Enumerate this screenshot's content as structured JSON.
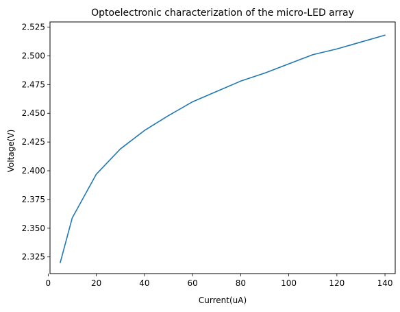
{
  "chart_data": {
    "type": "line",
    "title": "Optoelectronic characterization of the micro-LED array",
    "xlabel": "Current(uA)",
    "ylabel": "Voltage(V)",
    "xlim": [
      0.75,
      144.25
    ],
    "ylim": [
      2.3105,
      2.5295
    ],
    "xticks": [
      0,
      20,
      40,
      60,
      80,
      100,
      120,
      140
    ],
    "yticks": [
      2.325,
      2.35,
      2.375,
      2.4,
      2.425,
      2.45,
      2.475,
      2.5,
      2.525
    ],
    "xtick_labels": [
      "0",
      "20",
      "40",
      "60",
      "80",
      "100",
      "120",
      "140"
    ],
    "ytick_labels": [
      "2.325",
      "2.350",
      "2.375",
      "2.400",
      "2.425",
      "2.450",
      "2.475",
      "2.500",
      "2.525"
    ],
    "grid": false,
    "series": [
      {
        "color": "#1f77b4",
        "x": [
          5,
          10,
          20,
          30,
          40,
          50,
          60,
          70,
          80,
          90,
          100,
          110,
          120,
          130,
          140
        ],
        "y": [
          2.32,
          2.359,
          2.397,
          2.419,
          2.435,
          2.448,
          2.46,
          2.469,
          2.478,
          2.485,
          2.493,
          2.501,
          2.506,
          2.512,
          2.518
        ]
      }
    ]
  }
}
